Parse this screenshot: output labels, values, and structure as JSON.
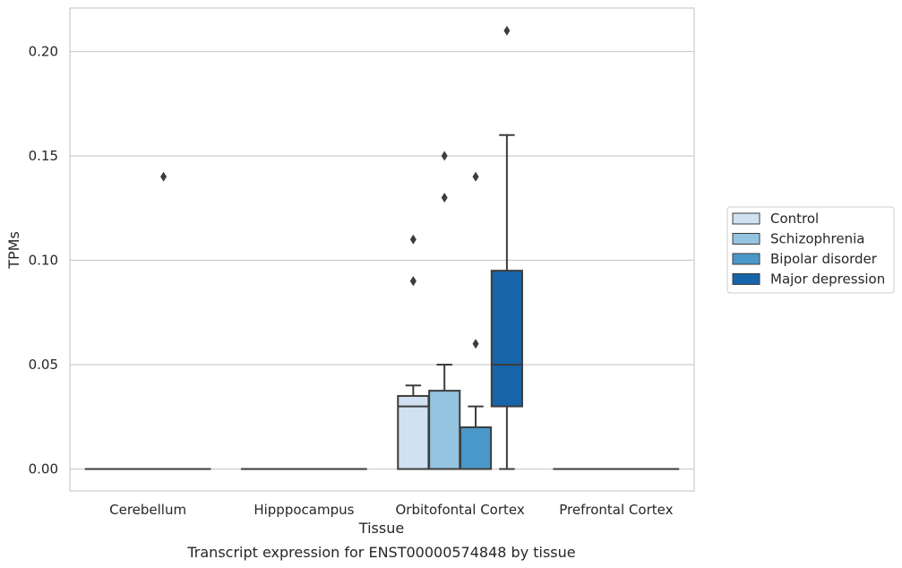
{
  "chart_data": {
    "type": "box",
    "title": "Transcript expression for ENST00000574848 by tissue",
    "xlabel": "Tissue",
    "ylabel": "TPMs",
    "ylim": [
      -0.01,
      0.22
    ],
    "yticks": [
      0.0,
      0.05,
      0.1,
      0.15,
      0.2
    ],
    "ytick_labels": [
      "0.00",
      "0.05",
      "0.10",
      "0.15",
      "0.20"
    ],
    "grid": "horizontal",
    "legend_position": "right",
    "categories": [
      "Cerebellum",
      "Hipppocampus",
      "Orbitofontal Cortex",
      "Prefrontal Cortex"
    ],
    "series": [
      {
        "name": "Control",
        "color": "#d0e1f2",
        "boxes": [
          {
            "category": "Cerebellum",
            "whislo": 0,
            "q1": 0,
            "med": 0,
            "q3": 0,
            "whishi": 0,
            "fliers": []
          },
          {
            "category": "Hipppocampus",
            "whislo": 0,
            "q1": 0,
            "med": 0,
            "q3": 0,
            "whishi": 0,
            "fliers": []
          },
          {
            "category": "Orbitofontal Cortex",
            "whislo": 0,
            "q1": 0,
            "med": 0.03,
            "q3": 0.035,
            "whishi": 0.04,
            "fliers": [
              0.09,
              0.09,
              0.11
            ]
          },
          {
            "category": "Prefrontal Cortex",
            "whislo": 0,
            "q1": 0,
            "med": 0,
            "q3": 0,
            "whishi": 0,
            "fliers": []
          }
        ]
      },
      {
        "name": "Schizophrenia",
        "color": "#94c4df",
        "boxes": [
          {
            "category": "Cerebellum",
            "whislo": 0,
            "q1": 0,
            "med": 0,
            "q3": 0,
            "whishi": 0,
            "fliers": []
          },
          {
            "category": "Hipppocampus",
            "whislo": 0,
            "q1": 0,
            "med": 0,
            "q3": 0,
            "whishi": 0,
            "fliers": []
          },
          {
            "category": "Orbitofontal Cortex",
            "whislo": 0,
            "q1": 0,
            "med": 0,
            "q3": 0.0375,
            "whishi": 0.05,
            "fliers": [
              0.13,
              0.15
            ]
          },
          {
            "category": "Prefrontal Cortex",
            "whislo": 0,
            "q1": 0,
            "med": 0,
            "q3": 0,
            "whishi": 0,
            "fliers": []
          }
        ]
      },
      {
        "name": "Bipolar disorder",
        "color": "#4a98c9",
        "boxes": [
          {
            "category": "Cerebellum",
            "whislo": 0,
            "q1": 0,
            "med": 0,
            "q3": 0,
            "whishi": 0,
            "fliers": [
              0.14
            ]
          },
          {
            "category": "Hipppocampus",
            "whislo": 0,
            "q1": 0,
            "med": 0,
            "q3": 0,
            "whishi": 0,
            "fliers": []
          },
          {
            "category": "Orbitofontal Cortex",
            "whislo": 0,
            "q1": 0,
            "med": 0,
            "q3": 0.02,
            "whishi": 0.03,
            "fliers": [
              0.06,
              0.14
            ]
          },
          {
            "category": "Prefrontal Cortex",
            "whislo": 0,
            "q1": 0,
            "med": 0,
            "q3": 0,
            "whishi": 0,
            "fliers": []
          }
        ]
      },
      {
        "name": "Major depression",
        "color": "#1764ab",
        "boxes": [
          {
            "category": "Cerebellum",
            "whislo": 0,
            "q1": 0,
            "med": 0,
            "q3": 0,
            "whishi": 0,
            "fliers": []
          },
          {
            "category": "Hipppocampus",
            "whislo": 0,
            "q1": 0,
            "med": 0,
            "q3": 0,
            "whishi": 0,
            "fliers": []
          },
          {
            "category": "Orbitofontal Cortex",
            "whislo": 0,
            "q1": 0.03,
            "med": 0.05,
            "q3": 0.095,
            "whishi": 0.16,
            "fliers": [
              0.21
            ]
          },
          {
            "category": "Prefrontal Cortex",
            "whislo": 0,
            "q1": 0,
            "med": 0,
            "q3": 0,
            "whishi": 0,
            "fliers": []
          }
        ]
      }
    ]
  }
}
